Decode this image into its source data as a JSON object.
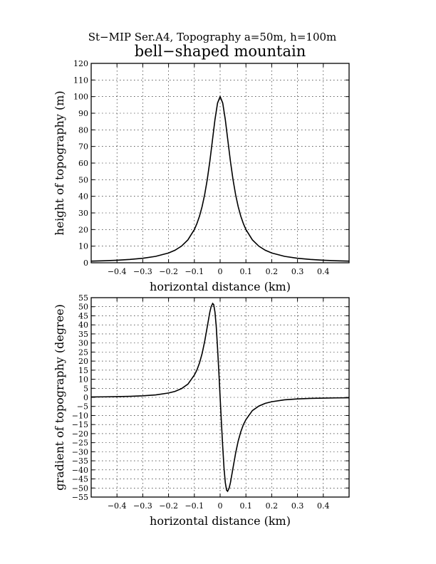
{
  "figure": {
    "supertitle": "St−MIP Ser.A4, Topography a=50m, h=100m",
    "title": "bell−shaped mountain"
  },
  "chart_data": [
    {
      "type": "line",
      "xlabel": "horizontal distance (km)",
      "ylabel": "height of topography (m)",
      "xlim": [
        -0.5,
        0.5
      ],
      "ylim": [
        0,
        120
      ],
      "xticks": [
        -0.4,
        -0.3,
        -0.2,
        -0.1,
        0,
        0.1,
        0.2,
        0.3,
        0.4
      ],
      "xtick_labels": [
        "−0.4",
        "−0.3",
        "−0.2",
        "−0.1",
        "0",
        "0.1",
        "0.2",
        "0.3",
        "0.4"
      ],
      "yticks": [
        0,
        10,
        20,
        30,
        40,
        50,
        60,
        70,
        80,
        90,
        100,
        110,
        120
      ],
      "ytick_labels": [
        "0",
        "10",
        "20",
        "30",
        "40",
        "50",
        "60",
        "70",
        "80",
        "90",
        "100",
        "110",
        "120"
      ],
      "grid": true,
      "series": [
        {
          "x": [
            -0.5,
            -0.45,
            -0.4,
            -0.35,
            -0.3,
            -0.25,
            -0.2,
            -0.175,
            -0.15,
            -0.125,
            -0.1,
            -0.09,
            -0.08,
            -0.07,
            -0.06,
            -0.05,
            -0.04,
            -0.03,
            -0.02,
            -0.01,
            0,
            0.01,
            0.02,
            0.03,
            0.04,
            0.05,
            0.06,
            0.07,
            0.08,
            0.09,
            0.1,
            0.125,
            0.15,
            0.175,
            0.2,
            0.25,
            0.3,
            0.35,
            0.4,
            0.45,
            0.5
          ],
          "values": [
            0.99,
            1.22,
            1.54,
            2.0,
            2.7,
            3.85,
            5.88,
            7.55,
            10.0,
            13.79,
            20.0,
            23.6,
            28.09,
            33.78,
            40.98,
            50.0,
            60.98,
            73.53,
            86.21,
            96.15,
            100.0,
            96.15,
            86.21,
            73.53,
            60.98,
            50.0,
            40.98,
            33.78,
            28.09,
            23.6,
            20.0,
            13.79,
            10.0,
            7.55,
            5.88,
            3.85,
            2.7,
            2.0,
            1.54,
            1.22,
            0.99
          ]
        }
      ]
    },
    {
      "type": "line",
      "xlabel": "horizontal distance (km)",
      "ylabel": "gradient of topography (degree)",
      "xlim": [
        -0.5,
        0.5
      ],
      "ylim": [
        -55,
        55
      ],
      "xticks": [
        -0.4,
        -0.3,
        -0.2,
        -0.1,
        0,
        0.1,
        0.2,
        0.3,
        0.4
      ],
      "xtick_labels": [
        "−0.4",
        "−0.3",
        "−0.2",
        "−0.1",
        "0",
        "0.1",
        "0.2",
        "0.3",
        "0.4"
      ],
      "yticks": [
        -55,
        -50,
        -45,
        -40,
        -35,
        -30,
        -25,
        -20,
        -15,
        -10,
        -5,
        0,
        5,
        10,
        15,
        20,
        25,
        30,
        35,
        40,
        45,
        50,
        55
      ],
      "ytick_labels": [
        "−55",
        "−50",
        "−45",
        "−40",
        "−35",
        "−30",
        "−25",
        "−20",
        "−15",
        "−10",
        "−5",
        "0",
        "5",
        "10",
        "15",
        "20",
        "25",
        "30",
        "35",
        "40",
        "45",
        "50",
        "55"
      ],
      "grid": true,
      "series": [
        {
          "x": [
            -0.5,
            -0.45,
            -0.4,
            -0.35,
            -0.3,
            -0.25,
            -0.2,
            -0.175,
            -0.15,
            -0.125,
            -0.1,
            -0.09,
            -0.08,
            -0.07,
            -0.06,
            -0.05,
            -0.04,
            -0.035,
            -0.029,
            -0.025,
            -0.02,
            -0.015,
            -0.01,
            -0.005,
            0,
            0.005,
            0.01,
            0.015,
            0.02,
            0.025,
            0.029,
            0.035,
            0.04,
            0.05,
            0.06,
            0.07,
            0.08,
            0.09,
            0.1,
            0.125,
            0.15,
            0.175,
            0.2,
            0.25,
            0.3,
            0.35,
            0.4,
            0.45,
            0.5
          ],
          "values": [
            0.23,
            0.3,
            0.41,
            0.57,
            0.85,
            1.36,
            2.4,
            3.3,
            4.8,
            7.3,
            12.3,
            15.1,
            19.0,
            24.1,
            30.8,
            38.9,
            47.0,
            50.0,
            51.8,
            51.2,
            47.0,
            38.9,
            27.1,
            14.0,
            0,
            -14.0,
            -27.1,
            -38.9,
            -47.0,
            -51.2,
            -51.8,
            -50.0,
            -47.0,
            -38.9,
            -30.8,
            -24.1,
            -19.0,
            -15.1,
            -12.3,
            -7.3,
            -4.8,
            -3.3,
            -2.4,
            -1.36,
            -0.85,
            -0.57,
            -0.41,
            -0.3,
            -0.23
          ]
        }
      ]
    }
  ]
}
